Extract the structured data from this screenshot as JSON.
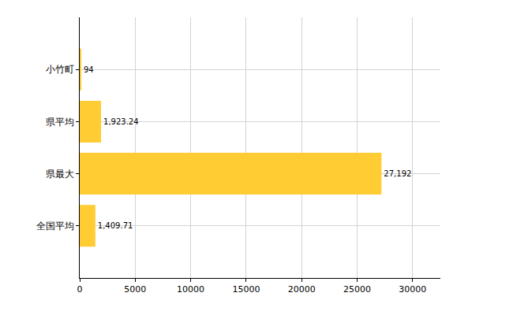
{
  "chart_data": {
    "type": "bar",
    "orientation": "horizontal",
    "categories": [
      "小竹町",
      "県平均",
      "県最大",
      "全国平均"
    ],
    "values": [
      94,
      1923.24,
      27192,
      1409.71
    ],
    "value_labels": [
      "94",
      "1,923.24",
      "27,192",
      "1,409.71"
    ],
    "data_labels": true,
    "color": "#ffcc33",
    "xlim": [
      0,
      32500
    ],
    "xticks": [
      0,
      5000,
      10000,
      15000,
      20000,
      25000,
      30000
    ],
    "grid": true
  }
}
